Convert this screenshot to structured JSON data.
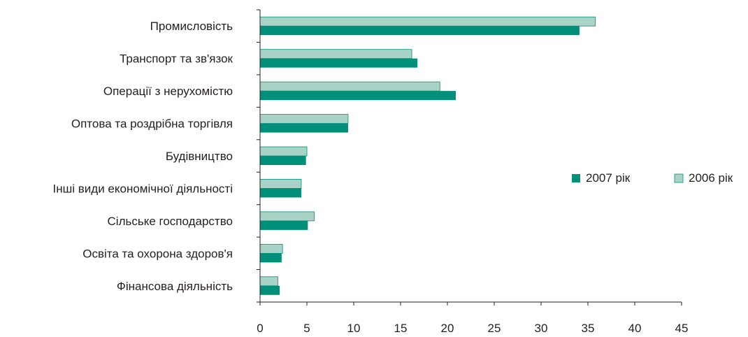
{
  "chart_data": {
    "type": "bar",
    "orientation": "horizontal",
    "title": "",
    "xlabel": "",
    "ylabel": "",
    "xlim": [
      0,
      45
    ],
    "ticks": [
      "0",
      "5",
      "10",
      "15",
      "20",
      "25",
      "30",
      "35",
      "40",
      "45"
    ],
    "grid": false,
    "legend_position": "right",
    "categories": [
      "Промисловість",
      "Транспорт та зв'язок",
      "Операції з нерухомістю",
      "Оптова та роздрібна торгівля",
      "Будівництво",
      "Інші види економічної діяльності",
      "Сільське господарство",
      "Освіта та охорона здоров'я",
      "Фінансова діяльність"
    ],
    "series": [
      {
        "name": "2007 рік",
        "color": "#00907a",
        "values": [
          34.1,
          16.8,
          20.9,
          9.4,
          4.9,
          4.4,
          5.1,
          2.3,
          2.1
        ]
      },
      {
        "name": "2006 рік",
        "color": "#a9d3c6",
        "values": [
          35.8,
          16.2,
          19.2,
          9.4,
          5.0,
          4.4,
          5.8,
          2.4,
          1.9
        ]
      }
    ]
  }
}
